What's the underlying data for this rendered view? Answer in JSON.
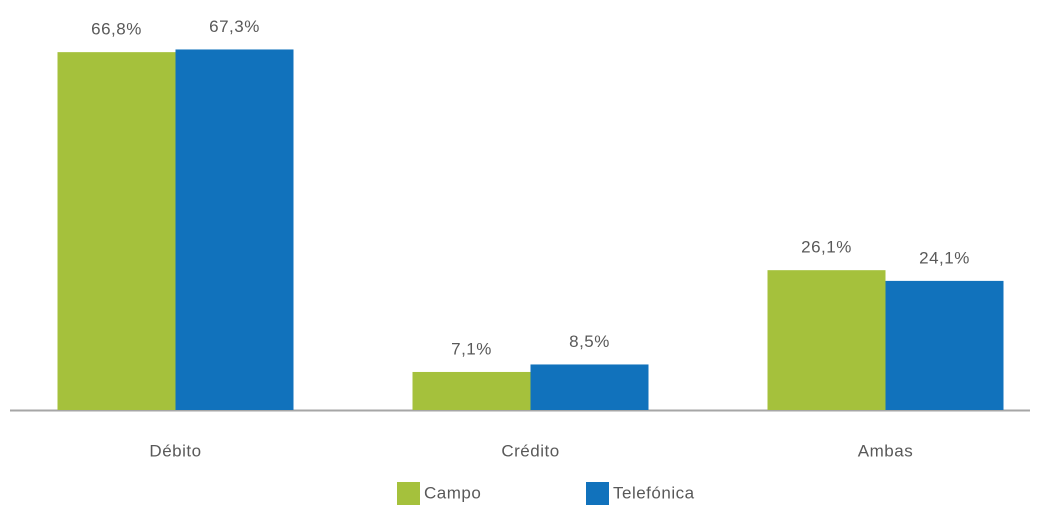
{
  "chart_data": {
    "type": "bar",
    "categories": [
      "Débito",
      "Crédito",
      "Ambas"
    ],
    "series": [
      {
        "name": "Campo",
        "color": "#a5c13c",
        "values": [
          66.8,
          7.1,
          26.1
        ],
        "value_labels": [
          "66,8%",
          "7,1%",
          "26,1%"
        ]
      },
      {
        "name": "Telefónica",
        "color": "#1172bc",
        "values": [
          67.3,
          8.5,
          24.1
        ],
        "value_labels": [
          "67,3%",
          "8,5%",
          "24,1%"
        ]
      }
    ],
    "ylim": [
      0,
      70
    ],
    "legend": "bottom"
  }
}
